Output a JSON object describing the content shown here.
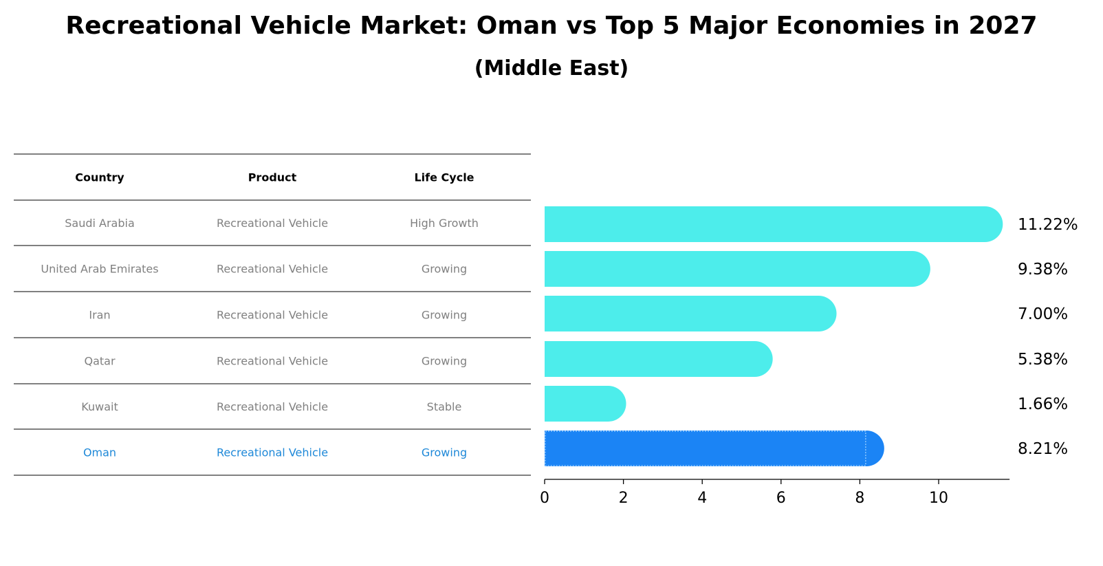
{
  "colors": {
    "bar": "#4DEDEB",
    "highlight_bar": "#1B84F5",
    "highlight_text": "#1E88D8",
    "cell_text": "#808080",
    "header_text": "#000000",
    "rule": "#000000"
  },
  "chart_data": {
    "type": "bar",
    "orientation": "horizontal",
    "title": "Recreational Vehicle Market: Oman vs Top 5 Major Economies in 2027",
    "subtitle": "(Middle East)",
    "table": {
      "headers": [
        "Country",
        "Product",
        "Life Cycle"
      ],
      "rows": [
        {
          "country": "Saudi Arabia",
          "product": "Recreational Vehicle",
          "life_cycle": "High Growth",
          "highlight": false
        },
        {
          "country": "United Arab Emirates",
          "product": "Recreational Vehicle",
          "life_cycle": "Growing",
          "highlight": false
        },
        {
          "country": "Iran",
          "product": "Recreational Vehicle",
          "life_cycle": "Growing",
          "highlight": false
        },
        {
          "country": "Qatar",
          "product": "Recreational Vehicle",
          "life_cycle": "Growing",
          "highlight": false
        },
        {
          "country": "Kuwait",
          "product": "Recreational Vehicle",
          "life_cycle": "Stable",
          "highlight": false
        },
        {
          "country": "Oman",
          "product": "Recreational Vehicle",
          "life_cycle": "Growing",
          "highlight": true
        }
      ]
    },
    "categories": [
      "Saudi Arabia",
      "United Arab Emirates",
      "Iran",
      "Qatar",
      "Kuwait",
      "Oman"
    ],
    "values": [
      11.22,
      9.38,
      7.0,
      5.38,
      1.66,
      8.21
    ],
    "value_labels": [
      "11.22%",
      "9.38%",
      "7.00%",
      "5.38%",
      "1.66%",
      "8.21%"
    ],
    "highlight_index": 5,
    "x_ticks": [
      0,
      2,
      4,
      6,
      8,
      10
    ],
    "xlim": [
      0,
      11.8
    ],
    "xlabel": "",
    "ylabel": "",
    "grid": false,
    "legend": "none"
  }
}
